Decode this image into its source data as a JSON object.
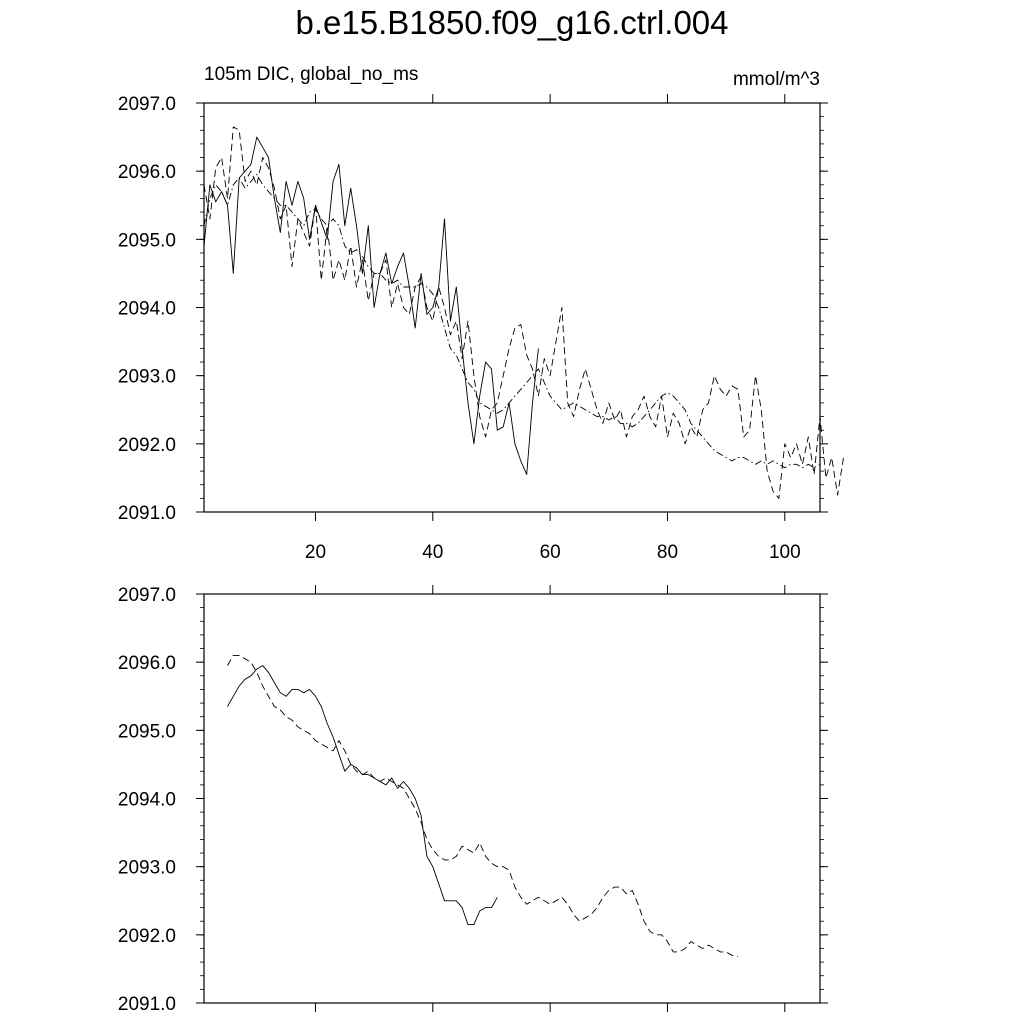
{
  "page": {
    "title": "b.e15.B1850.f09_g16.ctrl.004",
    "subtitle": "105m DIC, global_no_ms",
    "units": "mmol/m^3"
  },
  "chart_data": [
    {
      "type": "line",
      "xlim": [
        1,
        106
      ],
      "ylim": [
        2091.0,
        2097.0
      ],
      "x_ticks": [
        20,
        40,
        60,
        80,
        100
      ],
      "x_tick_labels": [
        "20",
        "40",
        "60",
        "80",
        "100"
      ],
      "y_ticks": [
        2091.0,
        2092.0,
        2093.0,
        2094.0,
        2095.0,
        2096.0,
        2097.0
      ],
      "y_tick_labels": [
        "2091.0",
        "2092.0",
        "2093.0",
        "2094.0",
        "2095.0",
        "2096.0",
        "2097.0"
      ],
      "grid": false,
      "series": [
        {
          "style": "solid",
          "x_start": 1,
          "values": [
            2094.9,
            2095.8,
            2095.55,
            2095.7,
            2095.5,
            2094.5,
            2095.9,
            2096.0,
            2096.1,
            2096.5,
            2096.35,
            2096.2,
            2095.6,
            2095.1,
            2095.85,
            2095.5,
            2095.85,
            2095.6,
            2095.0,
            2095.5,
            2095.25,
            2095.0,
            2095.85,
            2096.1,
            2095.2,
            2095.75,
            2095.2,
            2094.5,
            2095.2,
            2094.0,
            2094.5,
            2094.8,
            2094.35,
            2094.6,
            2094.8,
            2094.3,
            2093.7,
            2094.5,
            2093.9,
            2094.0,
            2094.3,
            2095.3,
            2093.8,
            2094.3,
            2093.4,
            2092.6,
            2092.0,
            2092.7,
            2093.2,
            2093.1,
            2092.2,
            2092.25,
            2092.6,
            2092.0,
            2091.75,
            2091.55,
            2092.6,
            2093.4
          ]
        },
        {
          "style": "dashed",
          "x_start": 1,
          "values": [
            2095.8,
            2095.3,
            2096.05,
            2096.2,
            2095.6,
            2096.65,
            2096.6,
            2095.85,
            2096.0,
            2095.8,
            2096.2,
            2096.05,
            2095.75,
            2095.3,
            2095.5,
            2094.6,
            2095.3,
            2095.1,
            2094.9,
            2095.5,
            2094.4,
            2095.2,
            2094.4,
            2094.7,
            2094.4,
            2094.9,
            2094.3,
            2094.7,
            2094.1,
            2094.5,
            2094.5,
            2094.7,
            2094.0,
            2094.35,
            2094.0,
            2093.9,
            2094.3,
            2094.45,
            2094.0,
            2093.8,
            2094.3,
            2094.0,
            2093.6,
            2093.8,
            2093.25,
            2093.8,
            2093.0,
            2092.4,
            2092.1,
            2092.5,
            2092.6,
            2093.0,
            2093.4,
            2093.7,
            2093.75,
            2093.3,
            2093.1,
            2092.7,
            2093.25,
            2093.0,
            2093.5,
            2094.0,
            2092.6,
            2092.4,
            2092.8,
            2093.1,
            2092.8,
            2092.5,
            2092.3,
            2092.6,
            2092.35,
            2092.5,
            2092.1,
            2092.4,
            2092.5,
            2092.7,
            2092.4,
            2092.25,
            2092.7,
            2092.1,
            2092.45,
            2092.3,
            2092.0,
            2092.25,
            2092.1,
            2092.5,
            2092.6,
            2093.0,
            2092.8,
            2092.7,
            2092.85,
            2092.8,
            2092.1,
            2092.2,
            2093.0,
            2092.5,
            2091.6,
            2091.3,
            2091.2,
            2092.0,
            2091.8,
            2092.0,
            2091.7,
            2092.1,
            2091.55,
            2092.4,
            2091.5,
            2091.8,
            2091.25,
            2091.8
          ]
        },
        {
          "style": "dash-dot",
          "x_start": 1,
          "values": [
            2095.2,
            2095.6,
            2095.8,
            2095.7,
            2095.5,
            2095.8,
            2095.9,
            2095.75,
            2095.85,
            2095.95,
            2095.8,
            2095.7,
            2095.6,
            2095.5,
            2095.5,
            2095.4,
            2095.3,
            2095.2,
            2095.4,
            2095.45,
            2095.3,
            2095.2,
            2095.3,
            2095.2,
            2094.9,
            2094.8,
            2094.85,
            2094.75,
            2094.6,
            2094.5,
            2094.5,
            2094.4,
            2094.35,
            2094.4,
            2094.3,
            2094.3,
            2094.3,
            2094.35,
            2094.3,
            2094.2,
            2094.0,
            2093.7,
            2093.4,
            2093.3,
            2093.1,
            2092.9,
            2092.8,
            2092.6,
            2092.55,
            2092.5,
            2092.45,
            2092.5,
            2092.6,
            2092.7,
            2092.8,
            2092.9,
            2093.0,
            2093.1,
            2092.9,
            2092.7,
            2092.6,
            2092.5,
            2092.55,
            2092.6,
            2092.55,
            2092.5,
            2092.45,
            2092.4,
            2092.4,
            2092.35,
            2092.4,
            2092.3,
            2092.3,
            2092.25,
            2092.3,
            2092.4,
            2092.5,
            2092.6,
            2092.7,
            2092.75,
            2092.7,
            2092.6,
            2092.5,
            2092.3,
            2092.2,
            2092.1,
            2092.0,
            2091.9,
            2091.85,
            2091.8,
            2091.75,
            2091.8,
            2091.8,
            2091.75,
            2091.7,
            2091.75,
            2091.7,
            2091.75,
            2091.7,
            2091.65,
            2091.7,
            2091.7,
            2091.65,
            2091.7,
            2091.65,
            2091.7
          ]
        }
      ]
    },
    {
      "type": "line",
      "xlim": [
        1,
        106
      ],
      "ylim": [
        2091.0,
        2097.0
      ],
      "y_ticks": [
        2091.0,
        2092.0,
        2093.0,
        2094.0,
        2095.0,
        2096.0,
        2097.0
      ],
      "y_tick_labels": [
        "2091.0",
        "2092.0",
        "2093.0",
        "2094.0",
        "2095.0",
        "2096.0",
        "2097.0"
      ],
      "grid": false,
      "series": [
        {
          "style": "solid",
          "x_start": 5,
          "values": [
            2095.35,
            2095.5,
            2095.65,
            2095.75,
            2095.8,
            2095.9,
            2095.95,
            2095.85,
            2095.7,
            2095.55,
            2095.5,
            2095.6,
            2095.6,
            2095.55,
            2095.6,
            2095.5,
            2095.35,
            2095.1,
            2094.9,
            2094.65,
            2094.4,
            2094.5,
            2094.45,
            2094.35,
            2094.35,
            2094.3,
            2094.25,
            2094.2,
            2094.3,
            2094.15,
            2094.25,
            2094.15,
            2094.0,
            2093.75,
            2093.15,
            2093.0,
            2092.75,
            2092.5,
            2092.5,
            2092.5,
            2092.4,
            2092.15,
            2092.15,
            2092.35,
            2092.4,
            2092.4,
            2092.55
          ]
        },
        {
          "style": "dashed",
          "x_start": 5,
          "values": [
            2095.95,
            2096.1,
            2096.1,
            2096.05,
            2096.0,
            2095.85,
            2095.65,
            2095.5,
            2095.35,
            2095.3,
            2095.2,
            2095.15,
            2095.05,
            2095.0,
            2094.95,
            2094.85,
            2094.8,
            2094.75,
            2094.7,
            2094.85,
            2094.7,
            2094.5,
            2094.4,
            2094.35,
            2094.4,
            2094.3,
            2094.25,
            2094.3,
            2094.25,
            2094.2,
            2094.15,
            2094.0,
            2093.85,
            2093.65,
            2093.4,
            2093.25,
            2093.15,
            2093.1,
            2093.1,
            2093.15,
            2093.3,
            2093.25,
            2093.2,
            2093.35,
            2093.15,
            2093.05,
            2093.0,
            2093.0,
            2092.95,
            2092.7,
            2092.55,
            2092.45,
            2092.5,
            2092.55,
            2092.5,
            2092.45,
            2092.5,
            2092.55,
            2092.45,
            2092.3,
            2092.2,
            2092.25,
            2092.3,
            2092.4,
            2092.55,
            2092.65,
            2092.7,
            2092.7,
            2092.6,
            2092.65,
            2092.45,
            2092.2,
            2092.05,
            2092.0,
            2092.0,
            2091.9,
            2091.75,
            2091.75,
            2091.8,
            2091.9,
            2091.85,
            2091.8,
            2091.85,
            2091.8,
            2091.75,
            2091.75,
            2091.7,
            2091.68
          ]
        }
      ]
    }
  ]
}
